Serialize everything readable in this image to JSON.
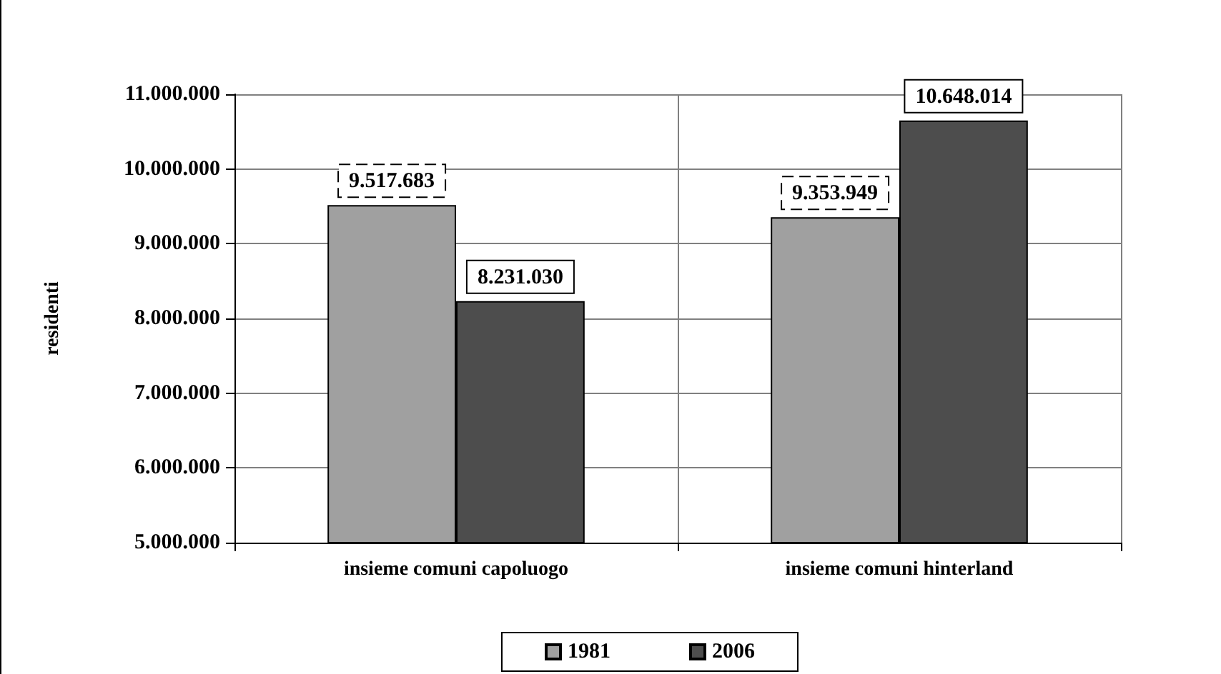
{
  "chart_data": {
    "type": "bar",
    "ylabel": "residenti",
    "categories": [
      "insieme comuni capoluogo",
      "insieme comuni hinterland"
    ],
    "series": [
      {
        "name": "1981",
        "color": "#a0a0a0",
        "values": [
          9517683,
          9353949
        ],
        "value_labels": [
          "9.517.683",
          "9.353.949"
        ]
      },
      {
        "name": "2006",
        "color": "#4d4d4d",
        "values": [
          8231030,
          10648014
        ],
        "value_labels": [
          "8.231.030",
          "10.648.014"
        ]
      }
    ],
    "ylim": [
      5000000,
      11000000
    ],
    "yticks": [
      {
        "value": 5000000,
        "label": "5.000.000"
      },
      {
        "value": 6000000,
        "label": "6.000.000"
      },
      {
        "value": 7000000,
        "label": "7.000.000"
      },
      {
        "value": 8000000,
        "label": "8.000.000"
      },
      {
        "value": 9000000,
        "label": "9.000.000"
      },
      {
        "value": 10000000,
        "label": "10.000.000"
      },
      {
        "value": 11000000,
        "label": "11.000.000"
      }
    ],
    "grid": true,
    "legend": "bottom"
  }
}
